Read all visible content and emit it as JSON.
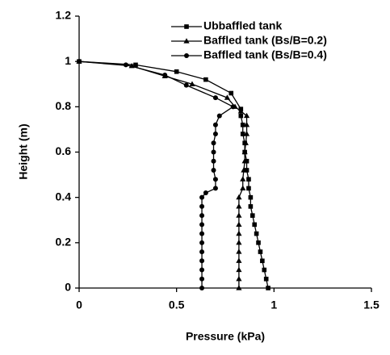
{
  "chart_data": {
    "type": "line",
    "x_label": "Pressure (kPa)",
    "y_label": "Height (m)",
    "xlim": [
      0,
      1.5
    ],
    "xticks": [
      0,
      0.5,
      1,
      1.5
    ],
    "ylim": [
      0,
      1.2
    ],
    "yticks": [
      0,
      0.2,
      0.4,
      0.6,
      0.8,
      1,
      1.2
    ],
    "legend": "upper right",
    "series": [
      {
        "name": "Ubbaffled tank",
        "color": "#000000",
        "marker": "square",
        "x": [
          0.97,
          0.96,
          0.95,
          0.94,
          0.93,
          0.92,
          0.91,
          0.9,
          0.89,
          0.88,
          0.88,
          0.87,
          0.87,
          0.86,
          0.86,
          0.85,
          0.85,
          0.84,
          0.84,
          0.83,
          0.83,
          0.78,
          0.65,
          0.5,
          0.29,
          0
        ],
        "values": [
          0,
          0.04,
          0.08,
          0.12,
          0.16,
          0.2,
          0.24,
          0.28,
          0.32,
          0.36,
          0.4,
          0.44,
          0.48,
          0.52,
          0.56,
          0.6,
          0.64,
          0.68,
          0.72,
          0.76,
          0.79,
          0.86,
          0.92,
          0.955,
          0.985,
          1
        ]
      },
      {
        "name": "Baffled tank (Bs/B=0.2)",
        "color": "#000000",
        "marker": "triangle",
        "x": [
          0.82,
          0.82,
          0.82,
          0.82,
          0.82,
          0.82,
          0.82,
          0.82,
          0.82,
          0.82,
          0.82,
          0.84,
          0.84,
          0.845,
          0.85,
          0.85,
          0.855,
          0.86,
          0.86,
          0.86,
          0.83,
          0.8,
          0.76,
          0.58,
          0.44,
          0.27,
          0
        ],
        "values": [
          0,
          0.04,
          0.08,
          0.12,
          0.16,
          0.2,
          0.24,
          0.28,
          0.32,
          0.36,
          0.4,
          0.44,
          0.48,
          0.52,
          0.56,
          0.6,
          0.64,
          0.68,
          0.72,
          0.76,
          0.78,
          0.8,
          0.84,
          0.9,
          0.935,
          0.98,
          1
        ]
      },
      {
        "name": "Baffled tank (Bs/B=0.4)",
        "color": "#000000",
        "marker": "circle",
        "x": [
          0.63,
          0.63,
          0.63,
          0.63,
          0.63,
          0.63,
          0.63,
          0.63,
          0.63,
          0.63,
          0.63,
          0.65,
          0.7,
          0.7,
          0.69,
          0.69,
          0.69,
          0.69,
          0.7,
          0.7,
          0.72,
          0.79,
          0.7,
          0.55,
          0.44,
          0.24,
          0
        ],
        "values": [
          0,
          0.04,
          0.08,
          0.12,
          0.16,
          0.2,
          0.24,
          0.28,
          0.32,
          0.36,
          0.4,
          0.42,
          0.44,
          0.48,
          0.52,
          0.56,
          0.6,
          0.64,
          0.68,
          0.72,
          0.76,
          0.8,
          0.84,
          0.895,
          0.94,
          0.985,
          1
        ]
      }
    ]
  }
}
